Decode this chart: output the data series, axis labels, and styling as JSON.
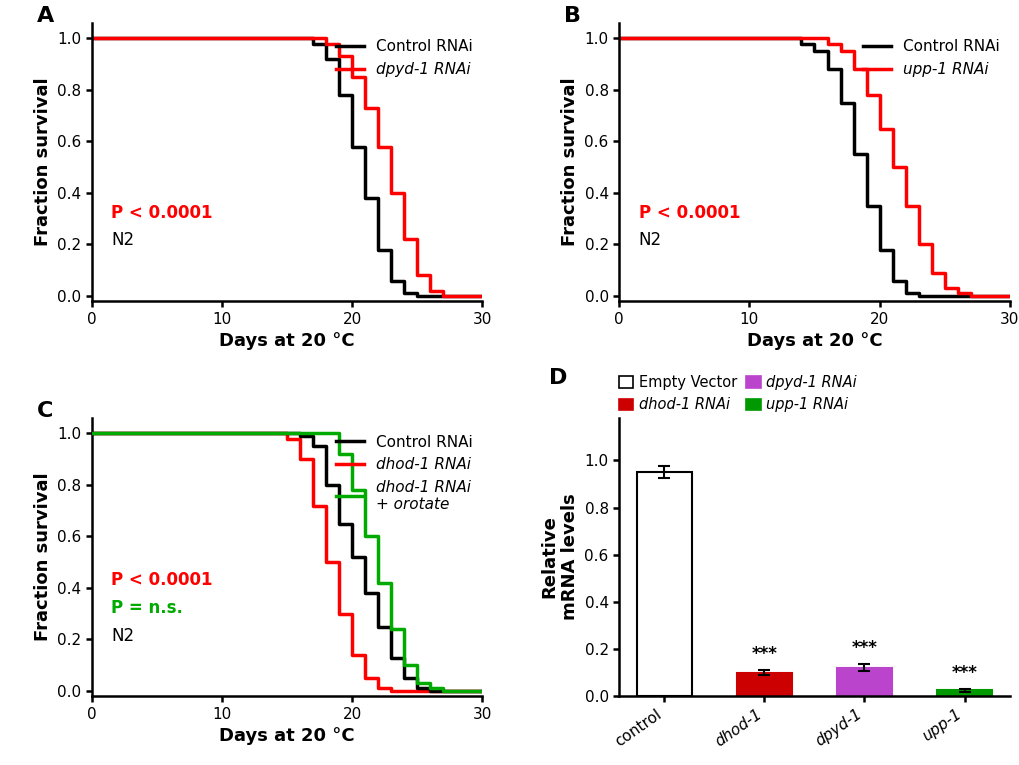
{
  "panel_A": {
    "label": "A",
    "control_x": [
      0,
      1,
      2,
      3,
      4,
      5,
      6,
      7,
      8,
      9,
      10,
      11,
      12,
      13,
      14,
      15,
      16,
      17,
      18,
      19,
      20,
      21,
      22,
      23,
      24,
      25,
      26,
      27,
      28,
      29,
      30
    ],
    "control_y": [
      1.0,
      1.0,
      1.0,
      1.0,
      1.0,
      1.0,
      1.0,
      1.0,
      1.0,
      1.0,
      1.0,
      1.0,
      1.0,
      1.0,
      1.0,
      1.0,
      1.0,
      0.98,
      0.92,
      0.78,
      0.58,
      0.38,
      0.18,
      0.06,
      0.01,
      0.0,
      0.0,
      0.0,
      0.0,
      0.0,
      0.0
    ],
    "treat_x": [
      0,
      1,
      2,
      3,
      4,
      5,
      6,
      7,
      8,
      9,
      10,
      11,
      12,
      13,
      14,
      15,
      16,
      17,
      18,
      19,
      20,
      21,
      22,
      23,
      24,
      25,
      26,
      27,
      28,
      29,
      30
    ],
    "treat_y": [
      1.0,
      1.0,
      1.0,
      1.0,
      1.0,
      1.0,
      1.0,
      1.0,
      1.0,
      1.0,
      1.0,
      1.0,
      1.0,
      1.0,
      1.0,
      1.0,
      1.0,
      1.0,
      0.98,
      0.93,
      0.85,
      0.73,
      0.58,
      0.4,
      0.22,
      0.08,
      0.02,
      0.0,
      0.0,
      0.0,
      0.0
    ],
    "control_color": "#000000",
    "treat_color": "#ff0000",
    "p_text": "P < 0.0001",
    "n2_text": "N2",
    "legend_control": "Control RNAi",
    "legend_treat": "dpyd-1 RNAi",
    "xlabel": "Days at 20 °C",
    "ylabel": "Fraction survival"
  },
  "panel_B": {
    "label": "B",
    "control_x": [
      0,
      1,
      2,
      3,
      4,
      5,
      6,
      7,
      8,
      9,
      10,
      11,
      12,
      13,
      14,
      15,
      16,
      17,
      18,
      19,
      20,
      21,
      22,
      23,
      24,
      25,
      26,
      27,
      28,
      29,
      30
    ],
    "control_y": [
      1.0,
      1.0,
      1.0,
      1.0,
      1.0,
      1.0,
      1.0,
      1.0,
      1.0,
      1.0,
      1.0,
      1.0,
      1.0,
      1.0,
      0.98,
      0.95,
      0.88,
      0.75,
      0.55,
      0.35,
      0.18,
      0.06,
      0.01,
      0.0,
      0.0,
      0.0,
      0.0,
      0.0,
      0.0,
      0.0,
      0.0
    ],
    "treat_x": [
      0,
      1,
      2,
      3,
      4,
      5,
      6,
      7,
      8,
      9,
      10,
      11,
      12,
      13,
      14,
      15,
      16,
      17,
      18,
      19,
      20,
      21,
      22,
      23,
      24,
      25,
      26,
      27,
      28,
      29,
      30
    ],
    "treat_y": [
      1.0,
      1.0,
      1.0,
      1.0,
      1.0,
      1.0,
      1.0,
      1.0,
      1.0,
      1.0,
      1.0,
      1.0,
      1.0,
      1.0,
      1.0,
      1.0,
      0.98,
      0.95,
      0.88,
      0.78,
      0.65,
      0.5,
      0.35,
      0.2,
      0.09,
      0.03,
      0.01,
      0.0,
      0.0,
      0.0,
      0.0
    ],
    "control_color": "#000000",
    "treat_color": "#ff0000",
    "p_text": "P < 0.0001",
    "n2_text": "N2",
    "legend_control": "Control RNAi",
    "legend_treat": "upp-1 RNAi",
    "xlabel": "Days at 20 °C",
    "ylabel": "Fraction survival"
  },
  "panel_C": {
    "label": "C",
    "control_x": [
      0,
      1,
      2,
      3,
      4,
      5,
      6,
      7,
      8,
      9,
      10,
      11,
      12,
      13,
      14,
      15,
      16,
      17,
      18,
      19,
      20,
      21,
      22,
      23,
      24,
      25,
      26,
      27,
      28,
      29,
      30
    ],
    "control_y": [
      1.0,
      1.0,
      1.0,
      1.0,
      1.0,
      1.0,
      1.0,
      1.0,
      1.0,
      1.0,
      1.0,
      1.0,
      1.0,
      1.0,
      1.0,
      1.0,
      0.99,
      0.95,
      0.8,
      0.65,
      0.52,
      0.38,
      0.25,
      0.13,
      0.05,
      0.01,
      0.0,
      0.0,
      0.0,
      0.0,
      0.0
    ],
    "dhod_x": [
      0,
      1,
      2,
      3,
      4,
      5,
      6,
      7,
      8,
      9,
      10,
      11,
      12,
      13,
      14,
      15,
      16,
      17,
      18,
      19,
      20,
      21,
      22,
      23,
      24,
      25,
      26,
      27,
      28,
      29,
      30
    ],
    "dhod_y": [
      1.0,
      1.0,
      1.0,
      1.0,
      1.0,
      1.0,
      1.0,
      1.0,
      1.0,
      1.0,
      1.0,
      1.0,
      1.0,
      1.0,
      1.0,
      0.98,
      0.9,
      0.72,
      0.5,
      0.3,
      0.14,
      0.05,
      0.01,
      0.0,
      0.0,
      0.0,
      0.0,
      0.0,
      0.0,
      0.0,
      0.0
    ],
    "orotate_x": [
      0,
      1,
      2,
      3,
      4,
      5,
      6,
      7,
      8,
      9,
      10,
      11,
      12,
      13,
      14,
      15,
      16,
      17,
      18,
      19,
      20,
      21,
      22,
      23,
      24,
      25,
      26,
      27,
      28,
      29,
      30
    ],
    "orotate_y": [
      1.0,
      1.0,
      1.0,
      1.0,
      1.0,
      1.0,
      1.0,
      1.0,
      1.0,
      1.0,
      1.0,
      1.0,
      1.0,
      1.0,
      1.0,
      1.0,
      1.0,
      1.0,
      1.0,
      0.92,
      0.78,
      0.6,
      0.42,
      0.24,
      0.1,
      0.03,
      0.01,
      0.0,
      0.0,
      0.0,
      0.0
    ],
    "control_color": "#000000",
    "dhod_color": "#ff0000",
    "orotate_color": "#00aa00",
    "p_red_text": "P < 0.0001",
    "p_green_text": "P = n.s.",
    "n2_text": "N2",
    "legend_control": "Control RNAi",
    "legend_dhod": "dhod-1 RNAi",
    "legend_orotate": "dhod-1 RNAi\n+ orotate",
    "xlabel": "Days at 20 °C",
    "ylabel": "Fraction survival"
  },
  "panel_D": {
    "label": "D",
    "categories": [
      "control",
      "dhod-1",
      "dpyd-1",
      "upp-1"
    ],
    "values": [
      0.95,
      0.1,
      0.12,
      0.025
    ],
    "errors": [
      0.025,
      0.012,
      0.015,
      0.006
    ],
    "colors": [
      "#ffffff",
      "#cc0000",
      "#bb44cc",
      "#009900"
    ],
    "edge_colors": [
      "#000000",
      "#cc0000",
      "#bb44cc",
      "#009900"
    ],
    "ylabel": "Relative\nmRNA levels",
    "legend_labels": [
      "Empty Vector",
      "dhod-1 RNAi",
      "dpyd-1 RNAi",
      "upp-1 RNAi"
    ],
    "legend_colors": [
      "#ffffff",
      "#cc0000",
      "#bb44cc",
      "#009900"
    ],
    "legend_edgecolors": [
      "#000000",
      "#cc0000",
      "#bb44cc",
      "#009900"
    ],
    "legend_italic_gene": [
      false,
      true,
      true,
      true
    ],
    "sig_labels": [
      "",
      "***",
      "***",
      "***"
    ],
    "yticks": [
      0.0,
      0.2,
      0.4,
      0.6,
      0.8,
      1.0
    ]
  },
  "linewidth": 2.5,
  "fontsize_label": 13,
  "fontsize_tick": 11,
  "fontsize_legend": 11,
  "fontsize_panel": 16
}
